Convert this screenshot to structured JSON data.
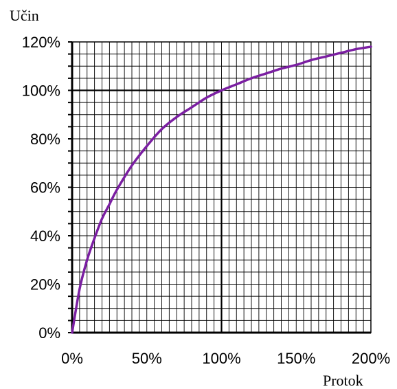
{
  "chart_data": {
    "type": "line",
    "xlabel": "Protok",
    "ylabel": "Učin",
    "x_ticks": [
      "0%",
      "50%",
      "100%",
      "150%",
      "200%"
    ],
    "y_ticks": [
      "0%",
      "20%",
      "40%",
      "60%",
      "80%",
      "100%",
      "120%"
    ],
    "xlim": [
      0,
      200
    ],
    "ylim": [
      0,
      120
    ],
    "grid": true,
    "series": [
      {
        "color": "#7b1fa2",
        "x": [
          0,
          5,
          10,
          15,
          20,
          25,
          30,
          40,
          50,
          60,
          70,
          80,
          90,
          100,
          110,
          120,
          130,
          140,
          150,
          160,
          170,
          180,
          190,
          200
        ],
        "y": [
          0,
          18,
          30,
          39,
          47,
          53,
          59,
          69,
          77,
          84,
          89,
          93,
          97,
          100,
          102.5,
          105,
          107,
          109,
          110.5,
          112.5,
          114,
          115.5,
          117,
          118
        ]
      }
    ],
    "reference_lines": [
      {
        "from": [
          0,
          100
        ],
        "to": [
          100,
          100
        ]
      },
      {
        "from": [
          100,
          100
        ],
        "to": [
          100,
          0
        ]
      }
    ]
  }
}
